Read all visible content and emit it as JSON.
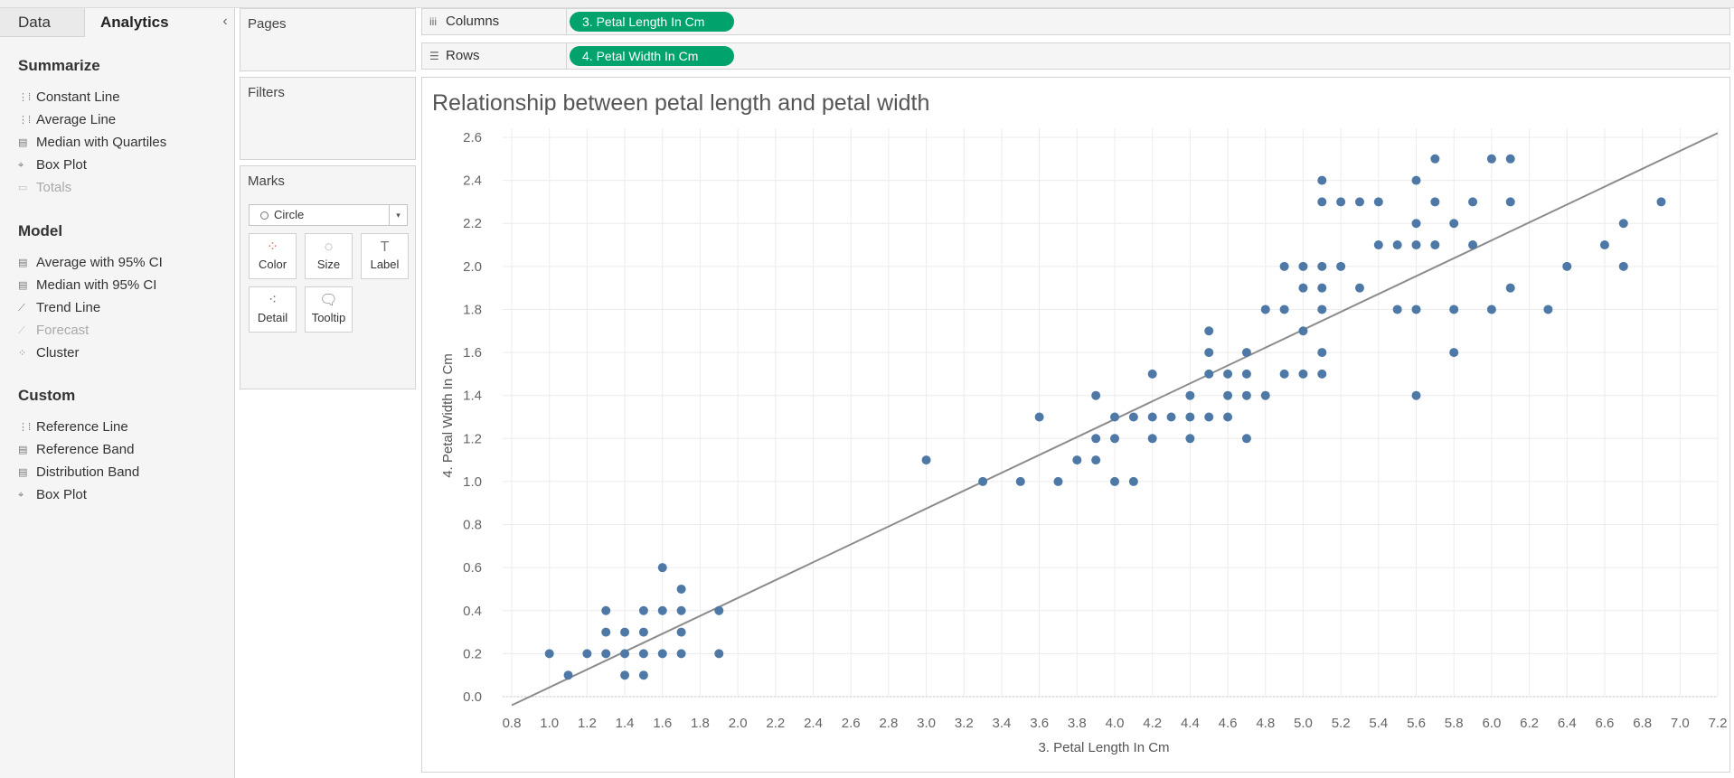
{
  "tabs": {
    "data": "Data",
    "analytics": "Analytics",
    "collapse_glyph": "‹"
  },
  "summarize": {
    "title": "Summarize",
    "items": [
      {
        "label": "Constant Line",
        "icon": "constant-line-icon",
        "glyph": "⋮⁞",
        "enabled": true
      },
      {
        "label": "Average Line",
        "icon": "average-line-icon",
        "glyph": "⋮⁞",
        "enabled": true
      },
      {
        "label": "Median with Quartiles",
        "icon": "quartiles-icon",
        "glyph": "▤",
        "enabled": true
      },
      {
        "label": "Box Plot",
        "icon": "box-plot-icon",
        "glyph": "⌖",
        "enabled": true
      },
      {
        "label": "Totals",
        "icon": "totals-icon",
        "glyph": "▭",
        "enabled": false
      }
    ]
  },
  "model": {
    "title": "Model",
    "items": [
      {
        "label": "Average with 95% CI",
        "icon": "average-ci-icon",
        "glyph": "▤",
        "enabled": true
      },
      {
        "label": "Median with 95% CI",
        "icon": "median-ci-icon",
        "glyph": "▤",
        "enabled": true
      },
      {
        "label": "Trend Line",
        "icon": "trend-line-icon",
        "glyph": "⟋",
        "enabled": true
      },
      {
        "label": "Forecast",
        "icon": "forecast-icon",
        "glyph": "⟋",
        "enabled": false
      },
      {
        "label": "Cluster",
        "icon": "cluster-icon",
        "glyph": "⁘",
        "enabled": true
      }
    ]
  },
  "custom": {
    "title": "Custom",
    "items": [
      {
        "label": "Reference Line",
        "icon": "reference-line-icon",
        "glyph": "⋮⁞",
        "enabled": true
      },
      {
        "label": "Reference Band",
        "icon": "reference-band-icon",
        "glyph": "▤",
        "enabled": true
      },
      {
        "label": "Distribution Band",
        "icon": "distribution-band-icon",
        "glyph": "▤",
        "enabled": true
      },
      {
        "label": "Box Plot",
        "icon": "box-plot-icon",
        "glyph": "⌖",
        "enabled": true
      }
    ]
  },
  "pages": {
    "title": "Pages"
  },
  "filters": {
    "title": "Filters"
  },
  "marks": {
    "title": "Marks",
    "type": "Circle",
    "dropdown_glyph": "▾",
    "buttons": [
      {
        "label": "Color",
        "icon": "color-icon",
        "glyph": "⁘",
        "color": "#e07b7b"
      },
      {
        "label": "Size",
        "icon": "size-icon",
        "glyph": "◌",
        "color": "#777777"
      },
      {
        "label": "Label",
        "icon": "label-icon",
        "glyph": "T",
        "color": "#777777"
      },
      {
        "label": "Detail",
        "icon": "detail-icon",
        "glyph": "⁖",
        "color": "#777777"
      },
      {
        "label": "Tooltip",
        "icon": "tooltip-icon",
        "glyph": "🗨",
        "color": "#777777"
      }
    ]
  },
  "shelves": {
    "columns": {
      "label": "Columns",
      "glyph": "iii",
      "pill": "3. Petal Length In Cm"
    },
    "rows": {
      "label": "Rows",
      "glyph": "☰",
      "pill": "4. Petal Width In Cm"
    }
  },
  "colors": {
    "accent": "#00a36c",
    "mark": "#4e79a7",
    "trend": "#8c8c8c",
    "grid": "#ececec"
  },
  "chart_data": {
    "type": "scatter",
    "title": "Relationship between petal length and petal width",
    "xlabel": "3. Petal Length In Cm",
    "ylabel": "4. Petal Width In Cm",
    "xlim": [
      0.8,
      7.2
    ],
    "ylim": [
      0.0,
      2.6
    ],
    "x_ticks": [
      "0.8",
      "1.0",
      "1.2",
      "1.4",
      "1.6",
      "1.8",
      "2.0",
      "2.2",
      "2.4",
      "2.6",
      "2.8",
      "3.0",
      "3.2",
      "3.4",
      "3.6",
      "3.8",
      "4.0",
      "4.2",
      "4.4",
      "4.6",
      "4.8",
      "5.0",
      "5.2",
      "5.4",
      "5.6",
      "5.8",
      "6.0",
      "6.2",
      "6.4",
      "6.6",
      "6.8",
      "7.0",
      "7.2"
    ],
    "y_ticks": [
      "0.0",
      "0.2",
      "0.4",
      "0.6",
      "0.8",
      "1.0",
      "1.2",
      "1.4",
      "1.6",
      "1.8",
      "2.0",
      "2.2",
      "2.4",
      "2.6"
    ],
    "trend_line": {
      "x0": 0.8,
      "y0": -0.04,
      "x1": 7.2,
      "y1": 2.62
    },
    "points": [
      [
        1.0,
        0.2
      ],
      [
        1.1,
        0.1
      ],
      [
        1.2,
        0.2
      ],
      [
        1.3,
        0.2
      ],
      [
        1.3,
        0.3
      ],
      [
        1.3,
        0.4
      ],
      [
        1.4,
        0.1
      ],
      [
        1.4,
        0.2
      ],
      [
        1.4,
        0.3
      ],
      [
        1.5,
        0.1
      ],
      [
        1.5,
        0.2
      ],
      [
        1.5,
        0.3
      ],
      [
        1.5,
        0.4
      ],
      [
        1.6,
        0.2
      ],
      [
        1.6,
        0.4
      ],
      [
        1.6,
        0.6
      ],
      [
        1.7,
        0.2
      ],
      [
        1.7,
        0.3
      ],
      [
        1.7,
        0.4
      ],
      [
        1.7,
        0.5
      ],
      [
        1.9,
        0.2
      ],
      [
        1.9,
        0.4
      ],
      [
        3.0,
        1.1
      ],
      [
        3.3,
        1.0
      ],
      [
        3.5,
        1.0
      ],
      [
        3.6,
        1.3
      ],
      [
        3.7,
        1.0
      ],
      [
        3.8,
        1.1
      ],
      [
        3.9,
        1.1
      ],
      [
        3.9,
        1.2
      ],
      [
        3.9,
        1.4
      ],
      [
        4.0,
        1.0
      ],
      [
        4.0,
        1.2
      ],
      [
        4.0,
        1.3
      ],
      [
        4.1,
        1.0
      ],
      [
        4.1,
        1.3
      ],
      [
        4.2,
        1.2
      ],
      [
        4.2,
        1.3
      ],
      [
        4.2,
        1.5
      ],
      [
        4.3,
        1.3
      ],
      [
        4.4,
        1.2
      ],
      [
        4.4,
        1.3
      ],
      [
        4.4,
        1.4
      ],
      [
        4.5,
        1.3
      ],
      [
        4.5,
        1.5
      ],
      [
        4.5,
        1.6
      ],
      [
        4.5,
        1.7
      ],
      [
        4.6,
        1.3
      ],
      [
        4.6,
        1.4
      ],
      [
        4.6,
        1.5
      ],
      [
        4.7,
        1.2
      ],
      [
        4.7,
        1.4
      ],
      [
        4.7,
        1.5
      ],
      [
        4.7,
        1.6
      ],
      [
        4.8,
        1.4
      ],
      [
        4.8,
        1.8
      ],
      [
        4.9,
        1.5
      ],
      [
        4.9,
        1.8
      ],
      [
        4.9,
        2.0
      ],
      [
        5.0,
        1.5
      ],
      [
        5.0,
        1.7
      ],
      [
        5.0,
        1.9
      ],
      [
        5.0,
        2.0
      ],
      [
        5.1,
        1.5
      ],
      [
        5.1,
        1.6
      ],
      [
        5.1,
        1.8
      ],
      [
        5.1,
        1.9
      ],
      [
        5.1,
        2.0
      ],
      [
        5.1,
        2.3
      ],
      [
        5.1,
        2.4
      ],
      [
        5.2,
        2.0
      ],
      [
        5.2,
        2.3
      ],
      [
        5.3,
        1.9
      ],
      [
        5.3,
        2.3
      ],
      [
        5.4,
        2.1
      ],
      [
        5.4,
        2.3
      ],
      [
        5.5,
        1.8
      ],
      [
        5.5,
        2.1
      ],
      [
        5.6,
        1.4
      ],
      [
        5.6,
        1.8
      ],
      [
        5.6,
        2.1
      ],
      [
        5.6,
        2.2
      ],
      [
        5.6,
        2.4
      ],
      [
        5.7,
        2.1
      ],
      [
        5.7,
        2.3
      ],
      [
        5.7,
        2.5
      ],
      [
        5.8,
        1.6
      ],
      [
        5.8,
        1.8
      ],
      [
        5.8,
        2.2
      ],
      [
        5.9,
        2.1
      ],
      [
        5.9,
        2.3
      ],
      [
        6.0,
        1.8
      ],
      [
        6.0,
        2.5
      ],
      [
        6.1,
        1.9
      ],
      [
        6.1,
        2.3
      ],
      [
        6.1,
        2.5
      ],
      [
        6.3,
        1.8
      ],
      [
        6.4,
        2.0
      ],
      [
        6.6,
        2.1
      ],
      [
        6.7,
        2.0
      ],
      [
        6.7,
        2.2
      ],
      [
        6.9,
        2.3
      ]
    ]
  }
}
